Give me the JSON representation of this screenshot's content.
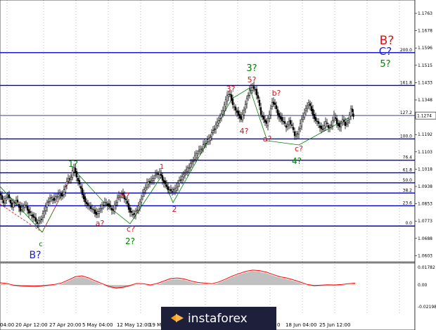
{
  "chart_data": {
    "type": "candlestick",
    "y_ticks": [
      "1.1763",
      "1.1678",
      "1.1596",
      "1.1515",
      "1.1433",
      "1.1348",
      "1.1274",
      "1.1192",
      "1.1103",
      "1.1018",
      "1.0938",
      "1.0853",
      "1.0773",
      "1.0688",
      "1.0603"
    ],
    "current_price": "1.1274",
    "ylim": [
      1.0603,
      1.1763
    ],
    "fib_levels": [
      {
        "label": "200.0",
        "value": 1.1575
      },
      {
        "label": "161.8",
        "value": 1.1418
      },
      {
        "label": "127.2",
        "value": 1.1274
      },
      {
        "label": "100.0",
        "value": 1.1162
      },
      {
        "label": "76.4",
        "value": 1.106
      },
      {
        "label": "61.8",
        "value": 1.1
      },
      {
        "label": "50.0",
        "value": 1.0952
      },
      {
        "label": "38.2",
        "value": 1.0903
      },
      {
        "label": "23.6",
        "value": 1.0842
      },
      {
        "label": "0.0",
        "value": 1.0745
      }
    ],
    "price_path": [
      [
        0,
        1.09
      ],
      [
        6,
        1.086
      ],
      [
        12,
        1.089
      ],
      [
        18,
        1.084
      ],
      [
        24,
        1.087
      ],
      [
        30,
        1.082
      ],
      [
        36,
        1.085
      ],
      [
        42,
        1.081
      ],
      [
        48,
        1.079
      ],
      [
        54,
        1.076
      ],
      [
        60,
        1.078
      ],
      [
        66,
        1.084
      ],
      [
        72,
        1.088
      ],
      [
        78,
        1.087
      ],
      [
        84,
        1.09
      ],
      [
        90,
        1.089
      ],
      [
        96,
        1.096
      ],
      [
        102,
        1.098
      ],
      [
        106,
        1.103
      ],
      [
        110,
        1.098
      ],
      [
        114,
        1.094
      ],
      [
        118,
        1.09
      ],
      [
        122,
        1.086
      ],
      [
        126,
        1.084
      ],
      [
        132,
        1.083
      ],
      [
        138,
        1.08
      ],
      [
        144,
        1.083
      ],
      [
        150,
        1.086
      ],
      [
        156,
        1.084
      ],
      [
        162,
        1.082
      ],
      [
        168,
        1.088
      ],
      [
        174,
        1.09
      ],
      [
        180,
        1.087
      ],
      [
        186,
        1.081
      ],
      [
        192,
        1.08
      ],
      [
        198,
        1.084
      ],
      [
        204,
        1.09
      ],
      [
        210,
        1.095
      ],
      [
        216,
        1.096
      ],
      [
        222,
        1.099
      ],
      [
        228,
        1.1
      ],
      [
        232,
        1.097
      ],
      [
        238,
        1.093
      ],
      [
        244,
        1.091
      ],
      [
        250,
        1.092
      ],
      [
        256,
        1.096
      ],
      [
        262,
        1.099
      ],
      [
        268,
        1.102
      ],
      [
        274,
        1.105
      ],
      [
        280,
        1.109
      ],
      [
        286,
        1.111
      ],
      [
        292,
        1.114
      ],
      [
        298,
        1.116
      ],
      [
        304,
        1.12
      ],
      [
        310,
        1.124
      ],
      [
        316,
        1.128
      ],
      [
        320,
        1.132
      ],
      [
        324,
        1.137
      ],
      [
        328,
        1.138
      ],
      [
        332,
        1.132
      ],
      [
        336,
        1.13
      ],
      [
        340,
        1.128
      ],
      [
        344,
        1.125
      ],
      [
        348,
        1.13
      ],
      [
        352,
        1.136
      ],
      [
        356,
        1.139
      ],
      [
        360,
        1.141
      ],
      [
        364,
        1.14
      ],
      [
        368,
        1.135
      ],
      [
        372,
        1.128
      ],
      [
        376,
        1.126
      ],
      [
        380,
        1.123
      ],
      [
        384,
        1.128
      ],
      [
        388,
        1.134
      ],
      [
        392,
        1.132
      ],
      [
        396,
        1.128
      ],
      [
        400,
        1.126
      ],
      [
        404,
        1.124
      ],
      [
        408,
        1.122
      ],
      [
        412,
        1.125
      ],
      [
        416,
        1.122
      ],
      [
        420,
        1.118
      ],
      [
        424,
        1.119
      ],
      [
        428,
        1.123
      ],
      [
        432,
        1.127
      ],
      [
        436,
        1.131
      ],
      [
        440,
        1.133
      ],
      [
        444,
        1.13
      ],
      [
        448,
        1.126
      ],
      [
        452,
        1.124
      ],
      [
        456,
        1.122
      ],
      [
        460,
        1.121
      ],
      [
        464,
        1.124
      ],
      [
        468,
        1.122
      ],
      [
        472,
        1.123
      ],
      [
        476,
        1.127
      ],
      [
        480,
        1.124
      ],
      [
        484,
        1.122
      ],
      [
        488,
        1.125
      ],
      [
        492,
        1.123
      ],
      [
        496,
        1.125
      ],
      [
        500,
        1.13
      ],
      [
        503,
        1.1274
      ]
    ],
    "wave_labels": [
      {
        "text": "c",
        "color": "#008000"
      },
      {
        "text": "B?",
        "color": "#1c1cd0"
      },
      {
        "text": "1?",
        "color": "#008000"
      },
      {
        "text": "b?",
        "color": "#e0101a"
      },
      {
        "text": "a?",
        "color": "#e0101a"
      },
      {
        "text": "c?",
        "color": "#e0101a"
      },
      {
        "text": "2?",
        "color": "#008000"
      },
      {
        "text": "1",
        "color": "#e0101a"
      },
      {
        "text": "2",
        "color": "#e0101a"
      },
      {
        "text": "3?",
        "color": "#e0101a"
      },
      {
        "text": "3?",
        "color": "#008000"
      },
      {
        "text": "5?",
        "color": "#e0101a"
      },
      {
        "text": "4?",
        "color": "#e0101a"
      },
      {
        "text": "b?",
        "color": "#e0101a"
      },
      {
        "text": "a?",
        "color": "#e0101a"
      },
      {
        "text": "c?",
        "color": "#e0101a"
      },
      {
        "text": "4?",
        "color": "#008000"
      },
      {
        "text": "B?",
        "color": "#e0101a"
      },
      {
        "text": "C?",
        "color": "#1c1cd0"
      },
      {
        "text": "5?",
        "color": "#008000"
      }
    ],
    "oscillator": {
      "y_ticks": [
        "0.01782",
        "0.00",
        "-0.02198"
      ],
      "values": [
        0.0012,
        0.0005,
        -0.0012,
        -0.0018,
        -0.002,
        -0.0022,
        -0.0019,
        -0.0012,
        -0.0005,
        0.001,
        0.004,
        0.0072,
        0.0082,
        0.006,
        0.003,
        0.0002,
        -0.0025,
        -0.004,
        -0.0032,
        -0.0015,
        0.0005,
        0.0002,
        -0.001,
        0.0005,
        0.003,
        0.0055,
        0.006,
        0.005,
        0.003,
        0.0015,
        0.0008,
        0.0002,
        0.002,
        0.0048,
        0.008,
        0.0105,
        0.0128,
        0.014,
        0.0135,
        0.012,
        0.0095,
        0.0072,
        0.006,
        0.004,
        0.0018,
        -0.0005,
        -0.0015,
        -0.0012,
        -0.0008,
        -0.001,
        -0.0006,
        0.0002,
        0.0008
      ]
    },
    "x_labels": [
      "04:00",
      "20 Apr 12:00",
      "27 Apr 20:00",
      "5 May 04:00",
      "12 May 12:00",
      "19 M",
      "0",
      "18 Jun 04:00",
      "25 Jun 12:00"
    ],
    "colors": {
      "level": "#0000cd",
      "candle": "#000000",
      "wave": "#008000",
      "osc_fill": "#c0c0c0",
      "osc_line": "#ff0000"
    }
  },
  "watermark": "instaforex"
}
